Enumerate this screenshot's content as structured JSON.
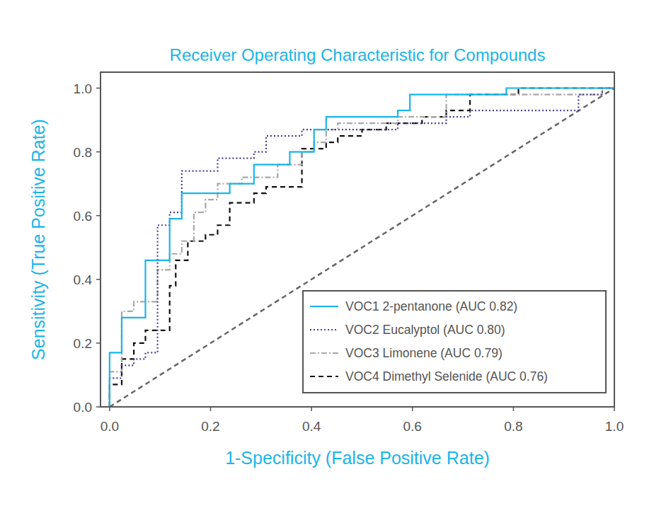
{
  "chart_data": {
    "type": "line",
    "title": "Receiver Operating Characteristic for Compounds",
    "x_label": "1-Specificity (False Positive Rate)",
    "y_label": "Sensitivity (True Positive Rate)",
    "xlim": [
      -0.018,
      1.0
    ],
    "ylim": [
      0.0,
      1.05
    ],
    "xticks": [
      {
        "value": 0,
        "label": "0.0"
      },
      {
        "value": 0.2,
        "label": "0.2"
      },
      {
        "value": 0.4,
        "label": "0.4"
      },
      {
        "value": 0.6,
        "label": "0.6"
      },
      {
        "value": 0.8,
        "label": "0.8"
      },
      {
        "value": 1,
        "label": "1.0"
      }
    ],
    "yticks": [
      {
        "value": 0,
        "label": "0.0"
      },
      {
        "value": 0.2,
        "label": "0.2"
      },
      {
        "value": 0.4,
        "label": "0.4"
      },
      {
        "value": 0.6,
        "label": "0.6"
      },
      {
        "value": 0.8,
        "label": "0.8"
      },
      {
        "value": 1,
        "label": "1.0"
      }
    ],
    "grid": false,
    "legend": "lower right",
    "series": [
      {
        "name": "VOC1 2-pentanone (AUC 0.82)",
        "color": "#1ab5e8",
        "line_style": "solid",
        "x": [
          0,
          0,
          0.024,
          0.024,
          0.071,
          0.071,
          0.119,
          0.119,
          0.143,
          0.143,
          0.238,
          0.238,
          0.286,
          0.286,
          0.357,
          0.357,
          0.405,
          0.405,
          0.429,
          0.429,
          0.571,
          0.571,
          0.595,
          0.595,
          0.786,
          0.786,
          1.0
        ],
        "values": [
          0,
          0.17,
          0.17,
          0.28,
          0.28,
          0.46,
          0.46,
          0.59,
          0.59,
          0.67,
          0.67,
          0.7,
          0.7,
          0.76,
          0.76,
          0.8,
          0.8,
          0.87,
          0.87,
          0.91,
          0.91,
          0.93,
          0.93,
          0.98,
          0.98,
          1.0,
          1.0
        ]
      },
      {
        "name": "VOC2 Eucalyptol (AUC 0.80)",
        "color": "#4a3f91",
        "line_style": "dotted",
        "x": [
          0,
          0,
          0.024,
          0.024,
          0.048,
          0.048,
          0.071,
          0.071,
          0.095,
          0.095,
          0.119,
          0.119,
          0.143,
          0.143,
          0.214,
          0.214,
          0.286,
          0.286,
          0.31,
          0.31,
          0.381,
          0.381,
          0.571,
          0.571,
          0.667,
          0.667,
          0.714,
          0.714,
          0.929,
          0.929,
          0.976,
          0.976,
          1.0
        ],
        "values": [
          0,
          0.09,
          0.09,
          0.13,
          0.13,
          0.15,
          0.15,
          0.17,
          0.17,
          0.57,
          0.57,
          0.61,
          0.61,
          0.74,
          0.74,
          0.78,
          0.78,
          0.8,
          0.8,
          0.85,
          0.85,
          0.87,
          0.87,
          0.89,
          0.89,
          0.91,
          0.91,
          0.93,
          0.93,
          0.98,
          0.98,
          1.0,
          1.0
        ]
      },
      {
        "name": "VOC3 Limonene (AUC 0.79)",
        "color": "#a8a8a8",
        "line_style": "dashdot",
        "x": [
          0,
          0,
          0.024,
          0.024,
          0.048,
          0.048,
          0.095,
          0.095,
          0.119,
          0.119,
          0.143,
          0.143,
          0.167,
          0.167,
          0.19,
          0.19,
          0.214,
          0.214,
          0.262,
          0.262,
          0.333,
          0.333,
          0.381,
          0.381,
          0.405,
          0.405,
          0.429,
          0.429,
          0.452,
          0.452,
          0.571,
          0.571,
          0.667,
          0.667,
          0.976,
          0.976,
          1.0
        ],
        "values": [
          0,
          0.11,
          0.11,
          0.3,
          0.3,
          0.33,
          0.33,
          0.43,
          0.43,
          0.48,
          0.48,
          0.52,
          0.52,
          0.61,
          0.61,
          0.65,
          0.65,
          0.7,
          0.7,
          0.72,
          0.72,
          0.76,
          0.76,
          0.8,
          0.8,
          0.83,
          0.83,
          0.87,
          0.87,
          0.89,
          0.89,
          0.91,
          0.91,
          0.98,
          0.98,
          1.0,
          1.0
        ]
      },
      {
        "name": "VOC4 Dimethyl Selenide (AUC 0.76)",
        "color": "#111111",
        "line_style": "dashed",
        "x": [
          0,
          0,
          0.024,
          0.024,
          0.048,
          0.048,
          0.071,
          0.071,
          0.119,
          0.119,
          0.131,
          0.131,
          0.155,
          0.155,
          0.19,
          0.19,
          0.214,
          0.214,
          0.238,
          0.238,
          0.286,
          0.286,
          0.31,
          0.31,
          0.381,
          0.381,
          0.429,
          0.429,
          0.452,
          0.452,
          0.5,
          0.5,
          0.548,
          0.548,
          0.619,
          0.619,
          0.667,
          0.667,
          0.714,
          0.714,
          0.81,
          0.81,
          1.0
        ],
        "values": [
          0,
          0.07,
          0.07,
          0.15,
          0.15,
          0.2,
          0.2,
          0.24,
          0.24,
          0.38,
          0.38,
          0.46,
          0.46,
          0.52,
          0.52,
          0.54,
          0.54,
          0.57,
          0.57,
          0.64,
          0.64,
          0.67,
          0.67,
          0.69,
          0.69,
          0.81,
          0.81,
          0.83,
          0.83,
          0.85,
          0.85,
          0.87,
          0.87,
          0.89,
          0.89,
          0.91,
          0.91,
          0.93,
          0.93,
          0.98,
          0.98,
          1.0,
          1.0
        ]
      }
    ],
    "reference": {
      "x": [
        0,
        1
      ],
      "values": [
        0,
        1
      ],
      "color": "#666666",
      "line_style": "dashed"
    }
  }
}
